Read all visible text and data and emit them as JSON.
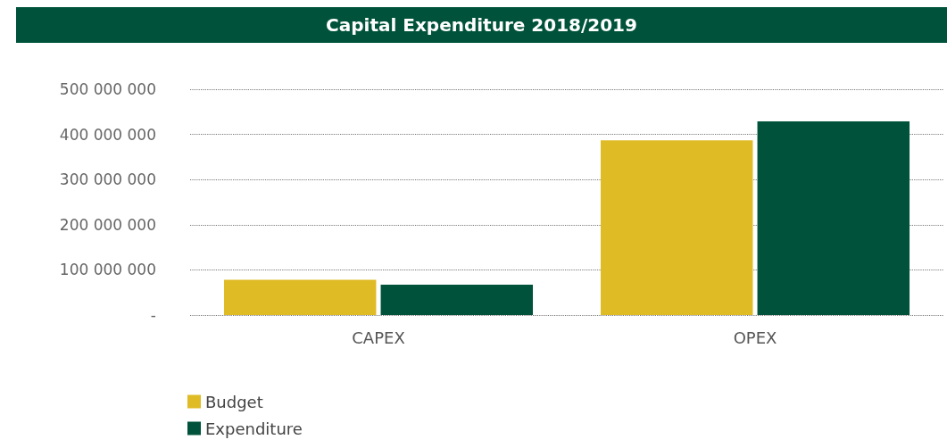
{
  "chart_data": {
    "type": "bar",
    "title": "Capital Expenditure 2018/2019",
    "categories": [
      "CAPEX",
      "OPEX"
    ],
    "series": [
      {
        "name": "Budget",
        "color": "#dfbb25",
        "values": [
          78000000,
          387000000
        ]
      },
      {
        "name": "Expenditure",
        "color": "#00533a",
        "values": [
          67000000,
          429000000
        ]
      }
    ],
    "ylim": [
      0,
      500000000
    ],
    "yticks": [
      {
        "value": 0,
        "label": "-"
      },
      {
        "value": 100000000,
        "label": "100 000 000"
      },
      {
        "value": 200000000,
        "label": "200 000 000"
      },
      {
        "value": 300000000,
        "label": "300 000 000"
      },
      {
        "value": 400000000,
        "label": "400 000 000"
      },
      {
        "value": 500000000,
        "label": "500 000 000"
      }
    ],
    "grid": true,
    "legend": "bottom left"
  }
}
